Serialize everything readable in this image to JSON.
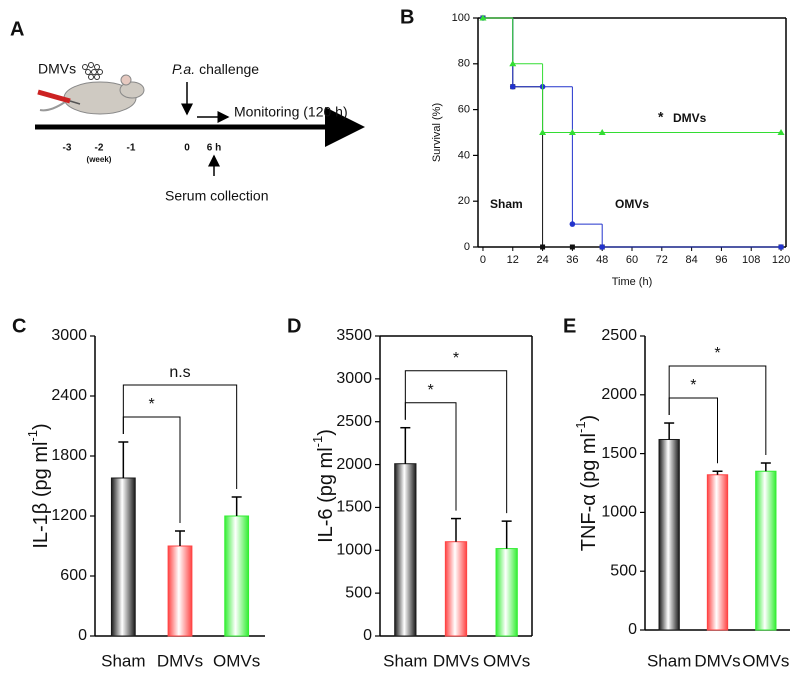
{
  "diagram": {
    "label": "A",
    "injection": "DMVs",
    "challenge_italic": "P.a.",
    "challenge": "challenge",
    "monitoring": "Monitoring (120 h)",
    "timeline": [
      "-3",
      "-2",
      "-1",
      "0",
      "6 h"
    ],
    "unit": "(week)",
    "collection": "Serum collection"
  },
  "chart_data": [
    {
      "panel": "B",
      "type": "line",
      "step": true,
      "box": true,
      "xlabel": "Time (h)",
      "ylabel": "Survival (%)",
      "x": [
        0,
        12,
        24,
        36,
        48,
        120
      ],
      "xlim": [
        -2,
        122
      ],
      "xticks": [
        0,
        12,
        24,
        36,
        48,
        60,
        72,
        84,
        96,
        108,
        120
      ],
      "ylim": [
        0,
        100
      ],
      "yticks": [
        0,
        20,
        40,
        60,
        80,
        100
      ],
      "annotation": "*",
      "series": [
        {
          "name": "Sham",
          "color": "#111111",
          "marker": "square",
          "values": [
            100,
            70,
            0,
            0,
            0,
            0
          ]
        },
        {
          "name": "OMVs",
          "color": "#2233cc",
          "marker": "circle",
          "values": [
            100,
            70,
            70,
            10,
            0,
            0
          ]
        },
        {
          "name": "DMVs",
          "color": "#33dd33",
          "marker": "triangle",
          "values": [
            100,
            80,
            50,
            50,
            50,
            50
          ]
        }
      ]
    },
    {
      "panel": "C",
      "type": "bar",
      "box": false,
      "categories": [
        "Sham",
        "DMVs",
        "OMVs"
      ],
      "values": [
        1580,
        900,
        1200
      ],
      "errors": [
        360,
        150,
        190
      ],
      "colors": [
        "#1a1a1a",
        "#ff4444",
        "#33ee33"
      ],
      "ylabel": "IL-1β (pg ml",
      "ylabel_sup": "-1",
      "ylabel_end": ")",
      "ylim": [
        0,
        3000
      ],
      "yticks": [
        0,
        600,
        1200,
        1800,
        2400,
        3000
      ],
      "comparisons": [
        {
          "label": "*"
        },
        {
          "label": "n.s"
        }
      ]
    },
    {
      "panel": "D",
      "type": "bar",
      "box": true,
      "categories": [
        "Sham",
        "DMVs",
        "OMVs"
      ],
      "values": [
        2010,
        1100,
        1020
      ],
      "errors": [
        420,
        270,
        320
      ],
      "colors": [
        "#1a1a1a",
        "#ff4444",
        "#33ee33"
      ],
      "ylabel": "IL-6 (pg ml",
      "ylabel_sup": "-1",
      "ylabel_end": ")",
      "ylim": [
        0,
        3500
      ],
      "yticks": [
        0,
        500,
        1000,
        1500,
        2000,
        2500,
        3000,
        3500
      ],
      "comparisons": [
        {
          "label": "*"
        },
        {
          "label": "*"
        }
      ]
    },
    {
      "panel": "E",
      "type": "bar",
      "box": false,
      "categories": [
        "Sham",
        "DMVs",
        "OMVs"
      ],
      "values": [
        1620,
        1320,
        1350
      ],
      "errors": [
        140,
        30,
        70
      ],
      "colors": [
        "#1a1a1a",
        "#ff4444",
        "#33ee33"
      ],
      "ylabel": "TNF-α (pg ml",
      "ylabel_sup": "-1",
      "ylabel_end": ")",
      "ylim": [
        0,
        2500
      ],
      "yticks": [
        0,
        500,
        1000,
        1500,
        2000,
        2500
      ],
      "comparisons": [
        {
          "label": "*"
        },
        {
          "label": "*"
        }
      ]
    }
  ]
}
